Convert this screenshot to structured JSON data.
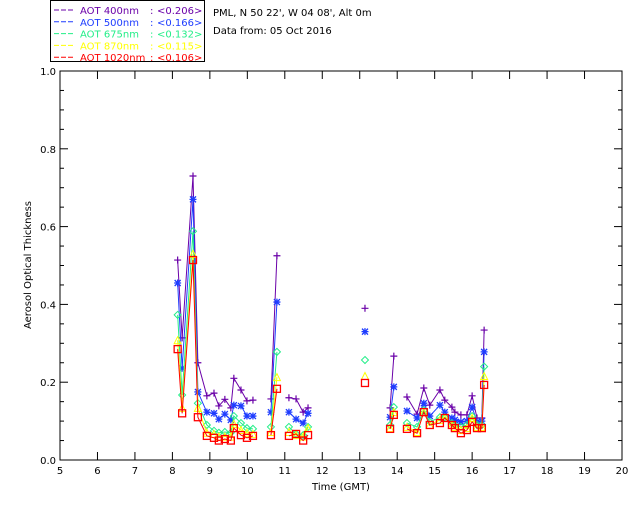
{
  "header": {
    "site_line": "PML, N 50 22', W 04 08', Alt 0m",
    "date_line": "Data from: 05 Oct 2016"
  },
  "chart_data": {
    "type": "scatter",
    "title": "",
    "xlabel": "Time (GMT)",
    "ylabel": "Aerosol Optical Thickness",
    "xlim": [
      5,
      20
    ],
    "ylim": [
      0,
      1.0
    ],
    "xticks": [
      "5",
      "6",
      "7",
      "8",
      "9",
      "10",
      "11",
      "12",
      "13",
      "14",
      "15",
      "16",
      "17",
      "18",
      "19",
      "20"
    ],
    "yticks": [
      "0.0",
      "0.2",
      "0.4",
      "0.6",
      "0.8",
      "1.0"
    ],
    "grid": false,
    "legend_position": "top-left-outside",
    "x": [
      8.14,
      8.26,
      8.55,
      8.68,
      8.92,
      9.11,
      9.24,
      9.4,
      9.56,
      9.64,
      9.83,
      9.99,
      10.15,
      10.63,
      10.79,
      11.11,
      11.3,
      11.49,
      11.62,
      13.14,
      13.81,
      13.91,
      14.26,
      14.53,
      14.71,
      14.87,
      15.14,
      15.27,
      15.46,
      15.54,
      15.7,
      15.86,
      16.0,
      16.13,
      16.26,
      16.32
    ],
    "series": [
      {
        "name": "AOT  400nm",
        "mean": "<0.206>",
        "color": "#6a00a8",
        "marker": "plus",
        "values": [
          0.514,
          0.314,
          0.73,
          0.25,
          0.165,
          0.172,
          0.139,
          0.156,
          0.134,
          0.21,
          0.18,
          0.152,
          0.154,
          0.157,
          0.525,
          0.16,
          0.157,
          0.123,
          0.134,
          0.39,
          0.134,
          0.267,
          0.162,
          0.118,
          0.185,
          0.141,
          0.18,
          0.154,
          0.136,
          0.123,
          0.116,
          0.116,
          0.165,
          0.108,
          0.108,
          0.334
        ]
      },
      {
        "name": "AOT  500nm",
        "mean": "<0.166>",
        "color": "#1e3cff",
        "marker": "asterisk",
        "values": [
          0.455,
          0.236,
          0.67,
          0.175,
          0.123,
          0.12,
          0.105,
          0.118,
          0.103,
          0.141,
          0.139,
          0.113,
          0.113,
          0.123,
          0.406,
          0.123,
          0.105,
          0.095,
          0.12,
          0.33,
          0.11,
          0.188,
          0.126,
          0.108,
          0.146,
          0.113,
          0.141,
          0.123,
          0.108,
          0.103,
          0.098,
          0.1,
          0.136,
          0.098,
          0.1,
          0.278
        ]
      },
      {
        "name": "AOT  675nm",
        "mean": "<0.132>",
        "color": "#22ee88",
        "marker": "diamond",
        "values": [
          0.373,
          0.167,
          0.588,
          0.146,
          0.09,
          0.075,
          0.07,
          0.072,
          0.07,
          0.113,
          0.095,
          0.082,
          0.08,
          0.085,
          0.278,
          0.085,
          0.067,
          0.064,
          0.085,
          0.257,
          0.09,
          0.136,
          0.095,
          0.085,
          0.128,
          0.098,
          0.11,
          0.11,
          0.095,
          0.09,
          0.085,
          0.09,
          0.113,
          0.09,
          0.09,
          0.24
        ]
      },
      {
        "name": "AOT  870nm",
        "mean": "<0.115>",
        "color": "#ffff00",
        "marker": "triangle",
        "values": [
          0.308,
          0.134,
          0.53,
          0.134,
          0.07,
          0.067,
          0.06,
          0.06,
          0.06,
          0.093,
          0.077,
          0.07,
          0.067,
          0.072,
          0.213,
          0.072,
          0.064,
          0.06,
          0.082,
          0.216,
          0.082,
          0.123,
          0.085,
          0.072,
          0.123,
          0.09,
          0.103,
          0.108,
          0.09,
          0.085,
          0.077,
          0.082,
          0.108,
          0.085,
          0.085,
          0.216
        ]
      },
      {
        "name": "AOT 1020nm",
        "mean": "<0.106>",
        "color": "#ff0000",
        "marker": "square",
        "values": [
          0.285,
          0.12,
          0.514,
          0.11,
          0.062,
          0.057,
          0.05,
          0.054,
          0.05,
          0.082,
          0.064,
          0.057,
          0.062,
          0.064,
          0.183,
          0.062,
          0.067,
          0.05,
          0.064,
          0.198,
          0.08,
          0.116,
          0.08,
          0.069,
          0.123,
          0.09,
          0.095,
          0.108,
          0.09,
          0.082,
          0.069,
          0.077,
          0.098,
          0.082,
          0.082,
          0.193
        ]
      }
    ]
  }
}
